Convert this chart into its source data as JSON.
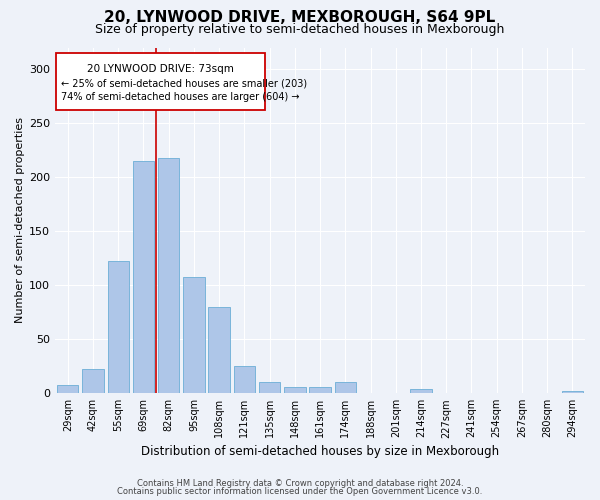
{
  "title": "20, LYNWOOD DRIVE, MEXBOROUGH, S64 9PL",
  "subtitle": "Size of property relative to semi-detached houses in Mexborough",
  "xlabel": "Distribution of semi-detached houses by size in Mexborough",
  "ylabel": "Number of semi-detached properties",
  "categories": [
    "29sqm",
    "42sqm",
    "55sqm",
    "69sqm",
    "82sqm",
    "95sqm",
    "108sqm",
    "121sqm",
    "135sqm",
    "148sqm",
    "161sqm",
    "174sqm",
    "188sqm",
    "201sqm",
    "214sqm",
    "227sqm",
    "241sqm",
    "254sqm",
    "267sqm",
    "280sqm",
    "294sqm"
  ],
  "values": [
    8,
    22,
    122,
    215,
    218,
    108,
    80,
    25,
    10,
    6,
    6,
    10,
    0,
    0,
    4,
    0,
    0,
    0,
    0,
    0,
    2
  ],
  "bar_color": "#aec6e8",
  "bar_edge_color": "#6baed6",
  "vline_x_index": 3.5,
  "marker_label": "20 LYNWOOD DRIVE: 73sqm",
  "smaller_pct": "25%",
  "smaller_count": 203,
  "larger_pct": "74%",
  "larger_count": 604,
  "annotation_box_color": "#cc0000",
  "vline_color": "#cc0000",
  "background_color": "#eef2f9",
  "grid_color": "#ffffff",
  "footer1": "Contains HM Land Registry data © Crown copyright and database right 2024.",
  "footer2": "Contains public sector information licensed under the Open Government Licence v3.0.",
  "ylim": [
    0,
    320
  ],
  "title_fontsize": 11,
  "subtitle_fontsize": 9
}
